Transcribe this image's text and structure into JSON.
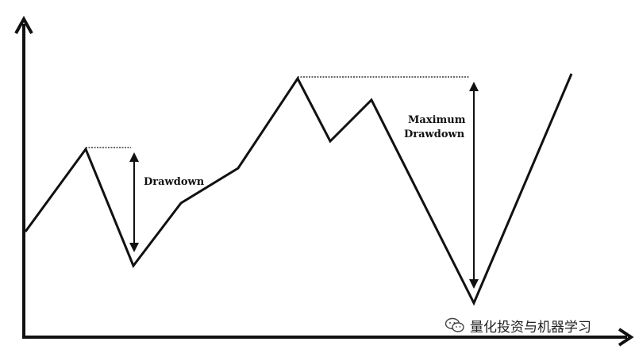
{
  "diagram": {
    "annotations": {
      "drawdown": "Drawdown",
      "max_drawdown_line1": "Maximum",
      "max_drawdown_line2": "Drawdown"
    }
  },
  "watermark": {
    "text": "量化投资与机器学习",
    "icon": "wechat-icon"
  }
}
